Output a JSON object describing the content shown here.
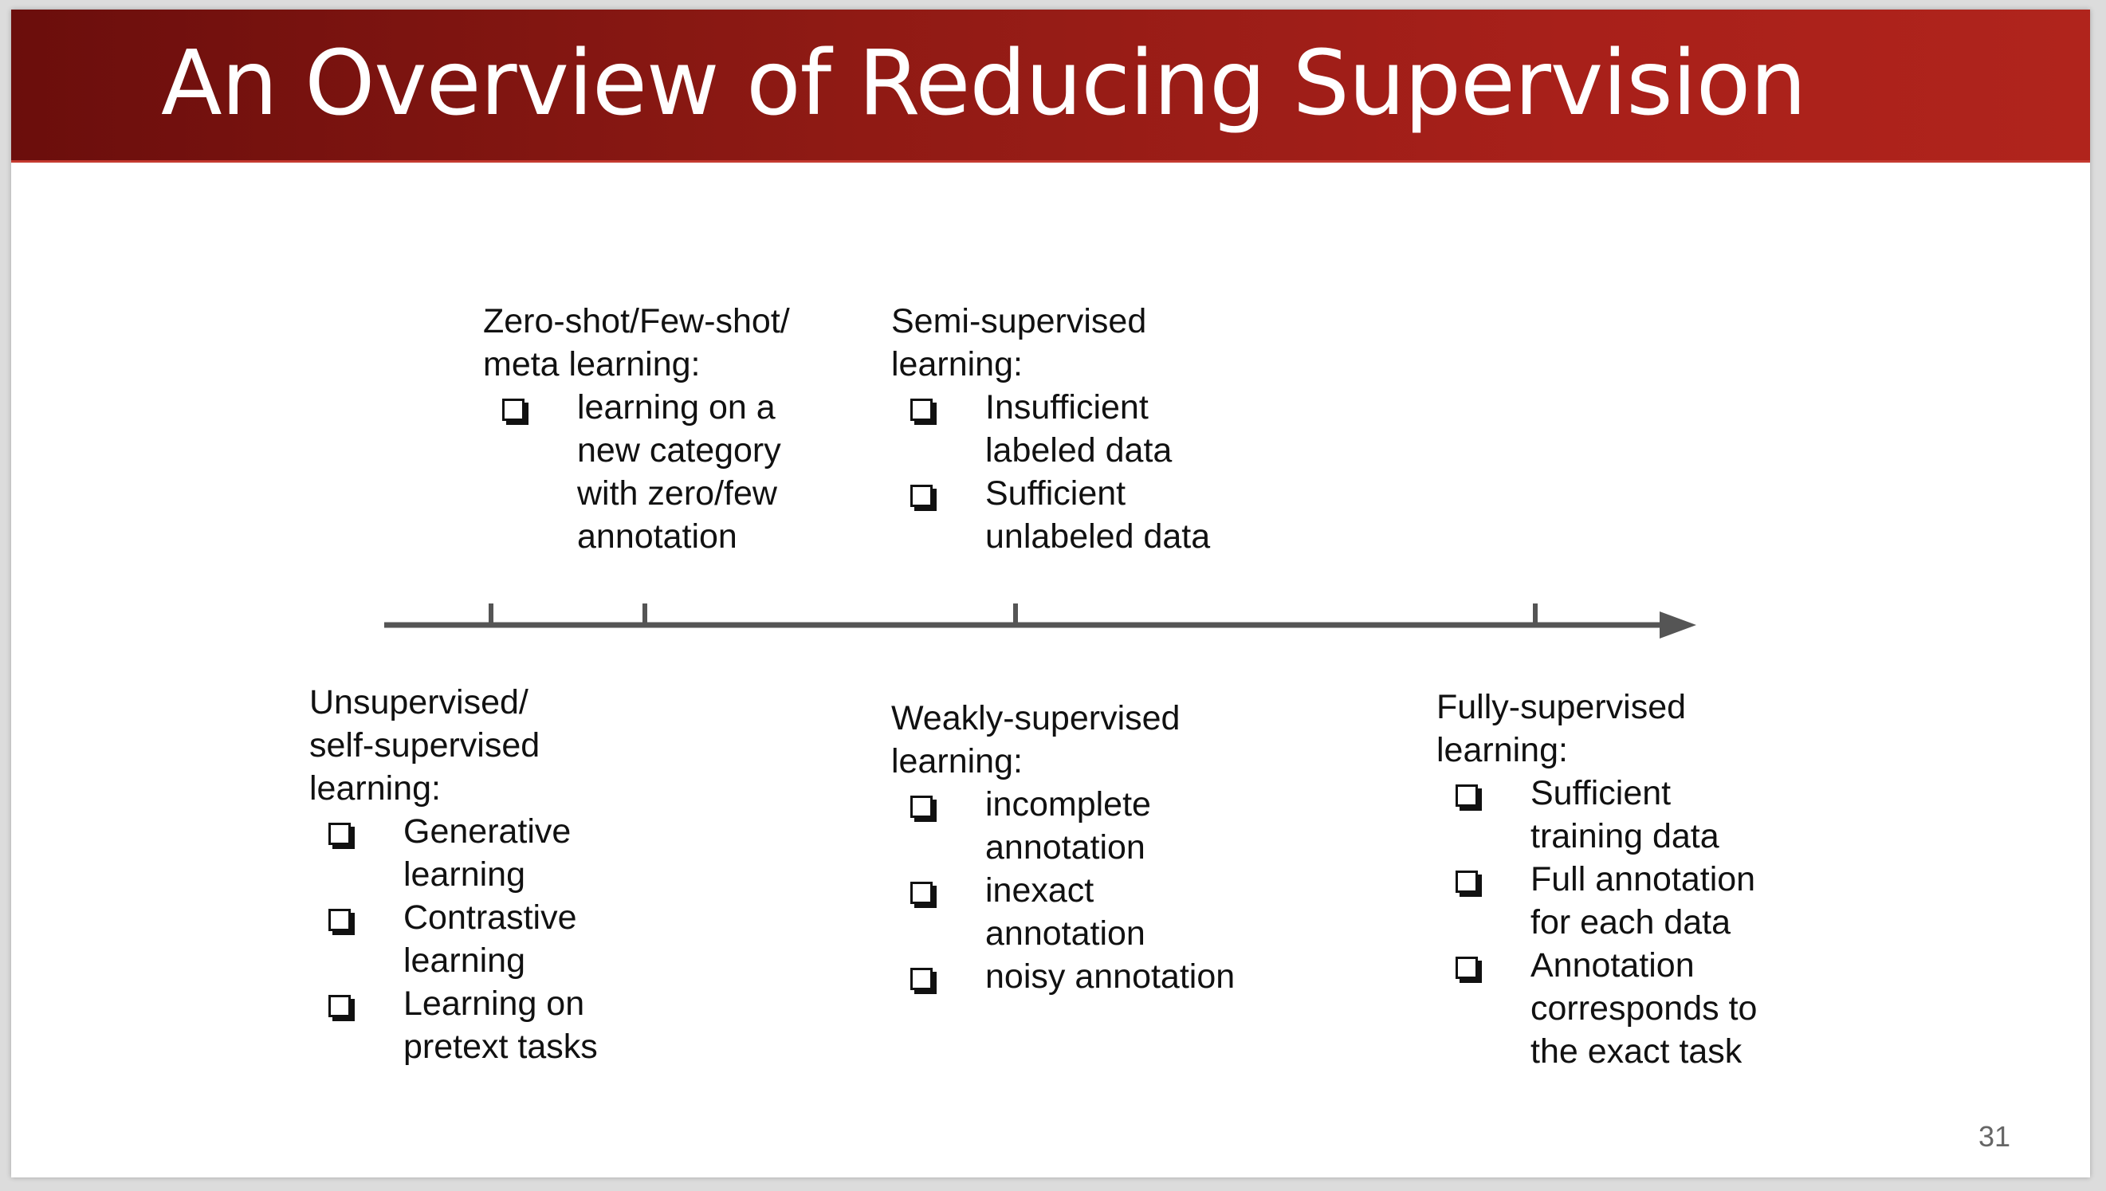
{
  "slide": {
    "title": "An Overview of Reducing Supervision",
    "page_number": "31"
  },
  "groups": {
    "zero_shot": {
      "title_lines": [
        "Zero-shot/Few-shot/",
        "meta learning:"
      ],
      "items": [
        [
          "learning on a",
          "new category",
          "with zero/few",
          "annotation"
        ]
      ]
    },
    "semi_supervised": {
      "title_lines": [
        "Semi-supervised",
        "learning:"
      ],
      "items": [
        [
          "Insufficient",
          "labeled data"
        ],
        [
          "Sufficient",
          "unlabeled data"
        ]
      ]
    },
    "unsupervised": {
      "title_lines": [
        "Unsupervised/",
        "self-supervised",
        "learning:"
      ],
      "items": [
        [
          "Generative",
          "learning"
        ],
        [
          "Contrastive",
          "learning"
        ],
        [
          "Learning on",
          "pretext tasks"
        ]
      ]
    },
    "weakly_supervised": {
      "title_lines": [
        "Weakly-supervised",
        "learning:"
      ],
      "items": [
        [
          "incomplete",
          "annotation"
        ],
        [
          "inexact",
          "annotation"
        ],
        [
          "noisy annotation"
        ]
      ]
    },
    "fully_supervised": {
      "title_lines": [
        "Fully-supervised",
        "learning:"
      ],
      "items": [
        [
          "Sufficient",
          "training data"
        ],
        [
          "Full annotation",
          "for each data"
        ],
        [
          "Annotation",
          "corresponds to",
          "the exact task"
        ]
      ]
    }
  },
  "colors": {
    "title_bar_start": "#6b0e0c",
    "title_bar_end": "#b0241c",
    "axis": "#555555",
    "text": "#111111"
  },
  "icons": {
    "bullet": "checkbox-bullet-icon",
    "arrow": "arrow-head-icon"
  }
}
